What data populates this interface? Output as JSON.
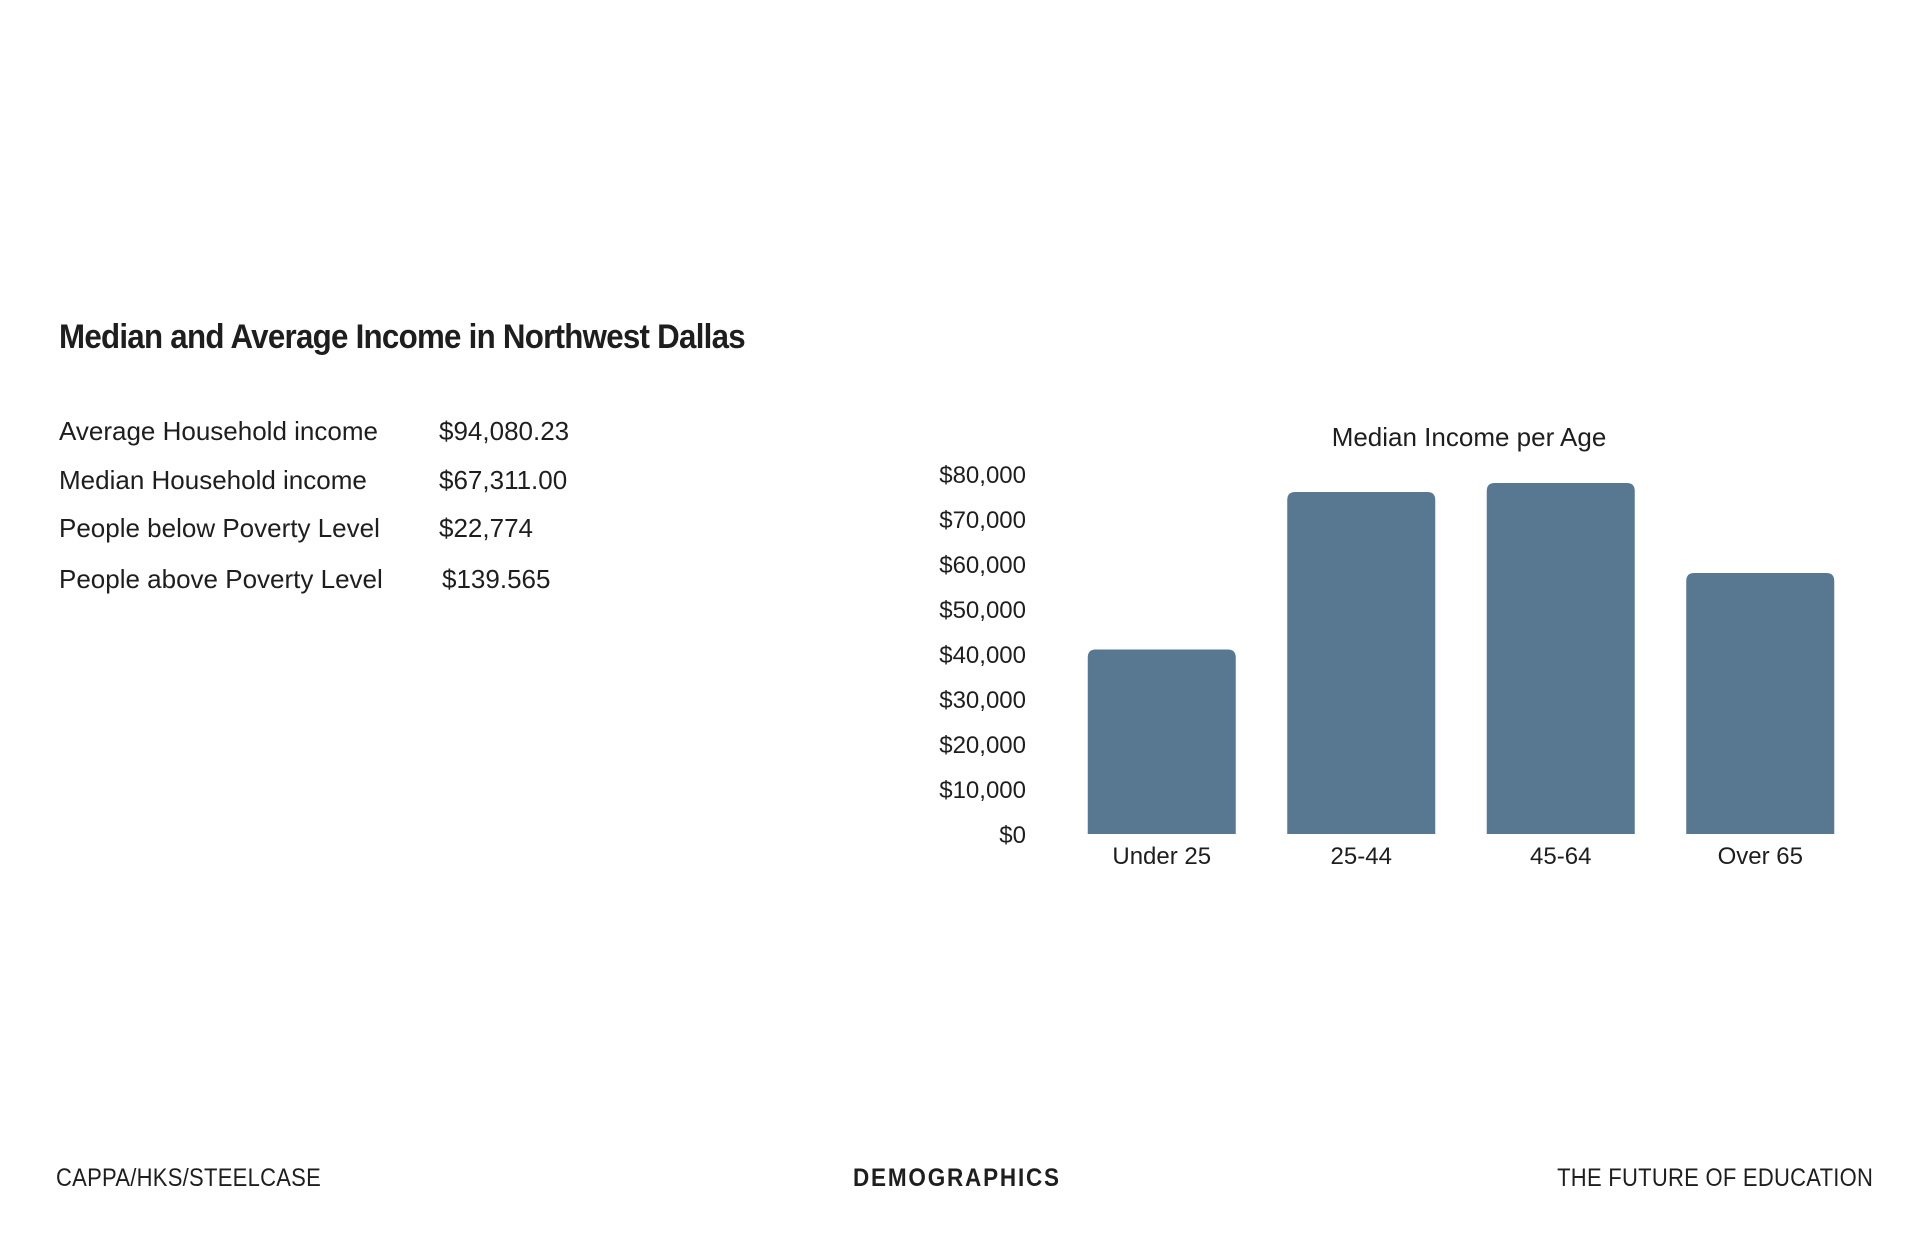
{
  "page": {
    "title": "Median and Average Income in Northwest Dallas"
  },
  "stats": [
    {
      "label": "Average Household income",
      "value": "$94,080.23"
    },
    {
      "label": "Median Household income",
      "value": "$67,311.00"
    },
    {
      "label": "People below Poverty Level",
      "value": "$22,774"
    },
    {
      "label": "People above Poverty Level",
      "value": "$139.565"
    }
  ],
  "colors": {
    "bar": "#587790",
    "text": "#1e1e1e"
  },
  "chart_data": {
    "type": "bar",
    "title": "Median Income per Age",
    "categories": [
      "Under 25",
      "25-44",
      "45-64",
      "Over 65"
    ],
    "values": [
      41000,
      76000,
      78000,
      58000
    ],
    "ylim": [
      0,
      80000
    ],
    "yticks": [
      0,
      10000,
      20000,
      30000,
      40000,
      50000,
      60000,
      70000,
      80000
    ],
    "ytick_labels": [
      "$0",
      "$10,000",
      "$20,000",
      "$30,000",
      "$40,000",
      "$50,000",
      "$60,000",
      "$70,000",
      "$80,000"
    ],
    "xlabel": "",
    "ylabel": "",
    "grid": false,
    "legend": "none"
  },
  "footer": {
    "left": "CAPPA/HKS/STEELCASE",
    "center": "DEMOGRAPHICS",
    "right": "THE FUTURE OF EDUCATION"
  }
}
